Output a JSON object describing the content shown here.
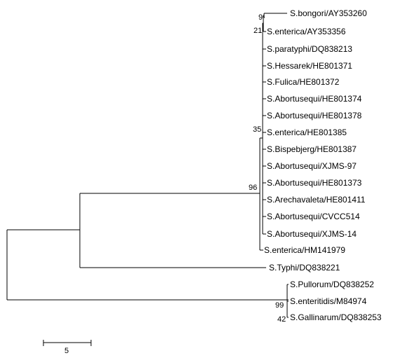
{
  "tree": {
    "taxa": [
      "S.bongori/AY353260",
      "S.enterica/AY353356",
      "S.paratyphi/DQ838213",
      "S.Hessarek/HE801371",
      "S.Fulica/HE801372",
      "S.Abortusequi/HE801374",
      "S.Abortusequi/HE801378",
      "S.enterica/HE801385",
      "S.Bispebjerg/HE801387",
      "S.Abortusequi/XJMS-97",
      "S.Abortusequi/HE801373",
      "S.Arechavaleta/HE801411",
      "S.Abortusequi/CVCC514",
      "S.Abortusequi/XJMS-14",
      "S.enterica/HM141979",
      "S.Typhi/DQ838221",
      "S.Pullorum/DQ838252",
      "S.enteritidis/M84974",
      "S.Gallinarum/DQ838253"
    ],
    "bootstrap": {
      "bongori_clade": "9",
      "enterica_clade": "21",
      "inner_group": "35",
      "main_group": "96",
      "pullorum_group": "99",
      "gallinarum_pair": "42"
    }
  },
  "scale_bar": {
    "label": "5"
  }
}
